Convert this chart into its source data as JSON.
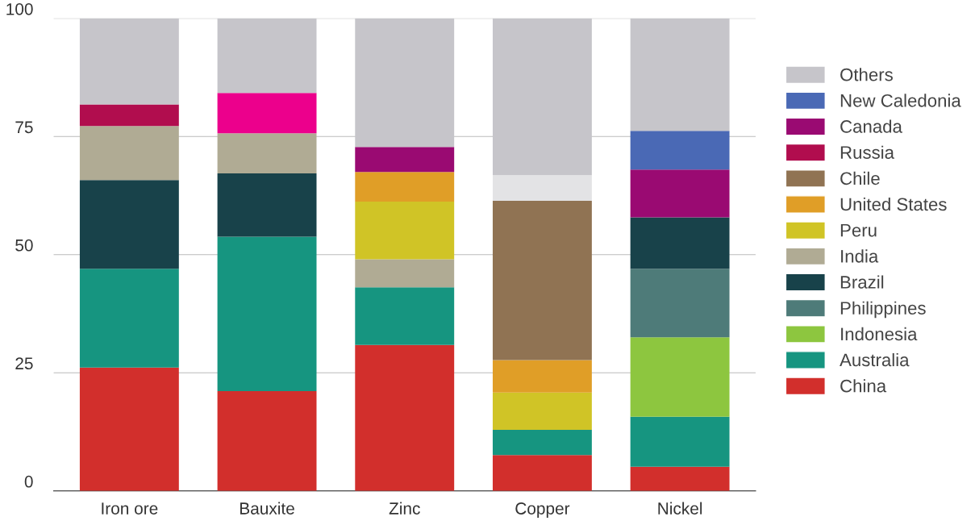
{
  "chart_data": {
    "type": "bar",
    "stacked": true,
    "categories": [
      "Iron ore",
      "Bauxite",
      "Zinc",
      "Copper",
      "Nickel"
    ],
    "series": [
      {
        "name": "China",
        "color": "#d22f2c",
        "values": [
          26.1,
          21.1,
          30.9,
          7.6,
          5.1
        ]
      },
      {
        "name": "Australia",
        "color": "#169580",
        "values": [
          20.9,
          32.7,
          12.2,
          5.3,
          10.6
        ]
      },
      {
        "name": "Indonesia",
        "color": "#8dc63f",
        "values": [
          null,
          null,
          null,
          null,
          16.8
        ]
      },
      {
        "name": "Philippines",
        "color": "#4e7b79",
        "values": [
          null,
          null,
          null,
          null,
          14.5
        ]
      },
      {
        "name": "Brazil",
        "color": "#18424a",
        "values": [
          18.8,
          13.4,
          null,
          null,
          10.9
        ]
      },
      {
        "name": "India",
        "color": "#b0ab94",
        "values": [
          11.4,
          8.5,
          5.9,
          null,
          null
        ]
      },
      {
        "name": "Peru",
        "color": "#d0c426",
        "values": [
          null,
          null,
          12.2,
          7.9,
          null
        ]
      },
      {
        "name": "United States",
        "color": "#e09e27",
        "values": [
          null,
          null,
          6.3,
          6.9,
          null
        ]
      },
      {
        "name": "Chile",
        "color": "#907353",
        "values": [
          null,
          null,
          null,
          33.7,
          null
        ]
      },
      {
        "color": "#e3e3e5",
        "values": [
          null,
          null,
          null,
          5.4,
          null
        ]
      },
      {
        "name": "Russia",
        "color": "#b10d4e",
        "values": [
          4.6,
          null,
          null,
          null,
          null
        ]
      },
      {
        "color": "#ec008c",
        "values": [
          null,
          8.5,
          null,
          null,
          null
        ]
      },
      {
        "name": "Canada",
        "color": "#9a0a72",
        "values": [
          null,
          null,
          5.3,
          null,
          10.1
        ]
      },
      {
        "name": "New Caledonia",
        "color": "#4a69b5",
        "values": [
          null,
          null,
          null,
          null,
          8.2
        ]
      },
      {
        "name": "Others",
        "color": "#c6c5ca",
        "values": [
          18.2,
          15.8,
          27.2,
          33.2,
          23.8
        ]
      }
    ],
    "ylim": [
      0,
      100
    ],
    "yticks": [
      0,
      25,
      50,
      75,
      100
    ],
    "grid": "y",
    "legend": "right"
  }
}
